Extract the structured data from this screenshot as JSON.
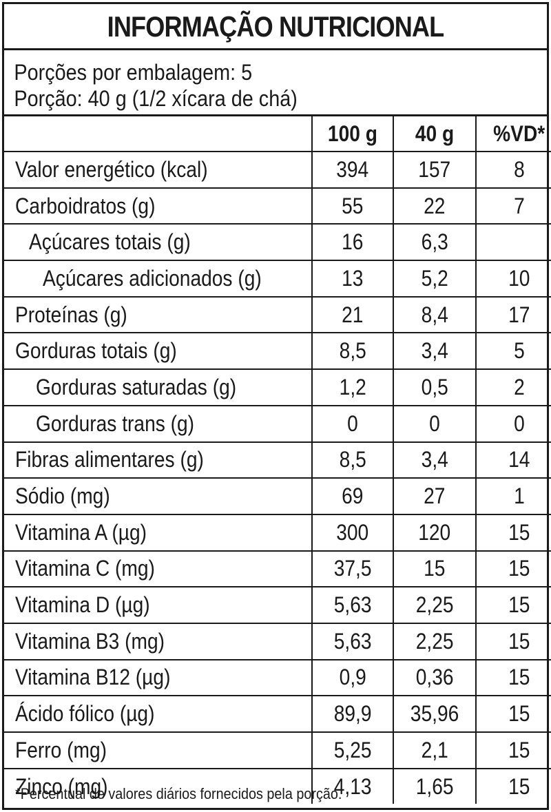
{
  "title": "INFORMAÇÃO NUTRICIONAL",
  "portion": {
    "servings_line": "Porções por embalagem: 5",
    "portion_line": "Porção: 40 g (1/2 xícara de chá)"
  },
  "columns": [
    "100 g",
    "40 g",
    "%VD*"
  ],
  "rows": [
    {
      "name": "Valor energético (kcal)",
      "v100": "394",
      "v40": "157",
      "vd": "8"
    },
    {
      "name": "Carboidratos (g)",
      "v100": "55",
      "v40": "22",
      "vd": "7"
    },
    {
      "name": "Açúcares totais (g)",
      "v100": "16",
      "v40": "6,3",
      "vd": ""
    },
    {
      "name": "Açúcares adicionados (g)",
      "v100": "13",
      "v40": "5,2",
      "vd": "10"
    },
    {
      "name": "Proteínas (g)",
      "v100": "21",
      "v40": "8,4",
      "vd": "17"
    },
    {
      "name": "Gorduras totais (g)",
      "v100": "8,5",
      "v40": "3,4",
      "vd": "5"
    },
    {
      "name": "Gorduras saturadas (g)",
      "v100": "1,2",
      "v40": "0,5",
      "vd": "2"
    },
    {
      "name": "Gorduras trans (g)",
      "v100": "0",
      "v40": "0",
      "vd": "0"
    },
    {
      "name": "Fibras alimentares (g)",
      "v100": "8,5",
      "v40": "3,4",
      "vd": "14"
    },
    {
      "name": "Sódio (mg)",
      "v100": "69",
      "v40": "27",
      "vd": "1"
    },
    {
      "name": "Vitamina A (µg)",
      "v100": "300",
      "v40": "120",
      "vd": "15"
    },
    {
      "name": "Vitamina C (mg)",
      "v100": "37,5",
      "v40": "15",
      "vd": "15"
    },
    {
      "name": "Vitamina D (µg)",
      "v100": "5,63",
      "v40": "2,25",
      "vd": "15"
    },
    {
      "name": "Vitamina B3 (mg)",
      "v100": "5,63",
      "v40": "2,25",
      "vd": "15"
    },
    {
      "name": "Vitamina B12 (µg)",
      "v100": "0,9",
      "v40": "0,36",
      "vd": "15"
    },
    {
      "name": "Ácido fólico (µg)",
      "v100": "89,9",
      "v40": "35,96",
      "vd": "15"
    },
    {
      "name": "Ferro (mg)",
      "v100": "5,25",
      "v40": "2,1",
      "vd": "15"
    },
    {
      "name": "Zinco (mg)",
      "v100": "4,13",
      "v40": "1,65",
      "vd": "15"
    }
  ],
  "footnote": "*Percentual de valores diários fornecidos pela porção."
}
